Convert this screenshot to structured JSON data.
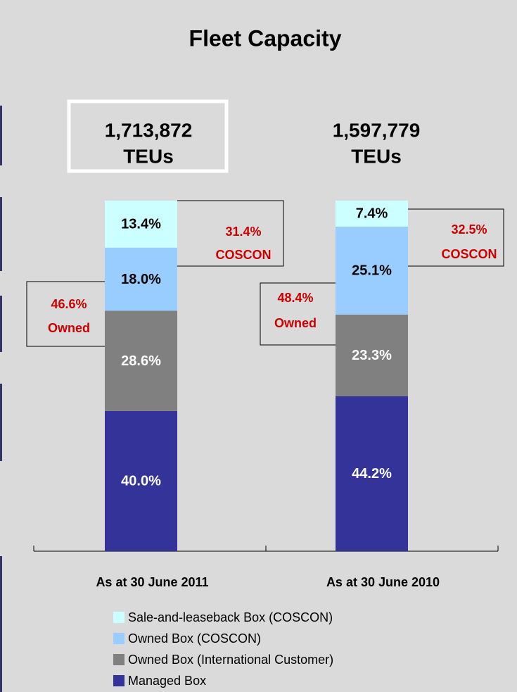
{
  "chart_data": {
    "type": "bar",
    "stacked": true,
    "title": "Fleet Capacity",
    "categories": [
      "As at 30 June 2011",
      "As at 30 June 2010"
    ],
    "ylim": [
      0,
      100
    ],
    "series": [
      {
        "name": "Managed Box",
        "color": "#333399",
        "values": [
          40.0,
          44.2
        ],
        "value_labels": [
          "40.0%",
          "44.2%"
        ]
      },
      {
        "name": "Owned Box (International Customer)",
        "color": "#808080",
        "values": [
          28.6,
          23.3
        ],
        "value_labels": [
          "28.6%",
          "23.3%"
        ]
      },
      {
        "name": "Owned Box (COSCON)",
        "color": "#99ccff",
        "values": [
          18.0,
          25.1
        ],
        "value_labels": [
          "18.0%",
          "25.1%"
        ]
      },
      {
        "name": "Sale-and-leaseback Box (COSCON)",
        "color": "#ccffff",
        "values": [
          13.4,
          7.4
        ],
        "value_labels": [
          "13.4%",
          "7.4%"
        ]
      }
    ],
    "totals": [
      {
        "value": 1713872,
        "label": "1,713,872"
      },
      {
        "value": 1597779,
        "label": "1,597,779"
      }
    ],
    "total_unit": "TEUs",
    "annotations": [
      {
        "value": 31.4,
        "label": "31.4%",
        "text": "COSCON"
      },
      {
        "value": 46.6,
        "label": "46.6%",
        "text": "Owned"
      },
      {
        "value": 32.5,
        "label": "32.5%",
        "text": "COSCON"
      },
      {
        "value": 48.4,
        "label": "48.4%",
        "text": "Owned"
      }
    ],
    "annotation_color": "#cc0000"
  }
}
